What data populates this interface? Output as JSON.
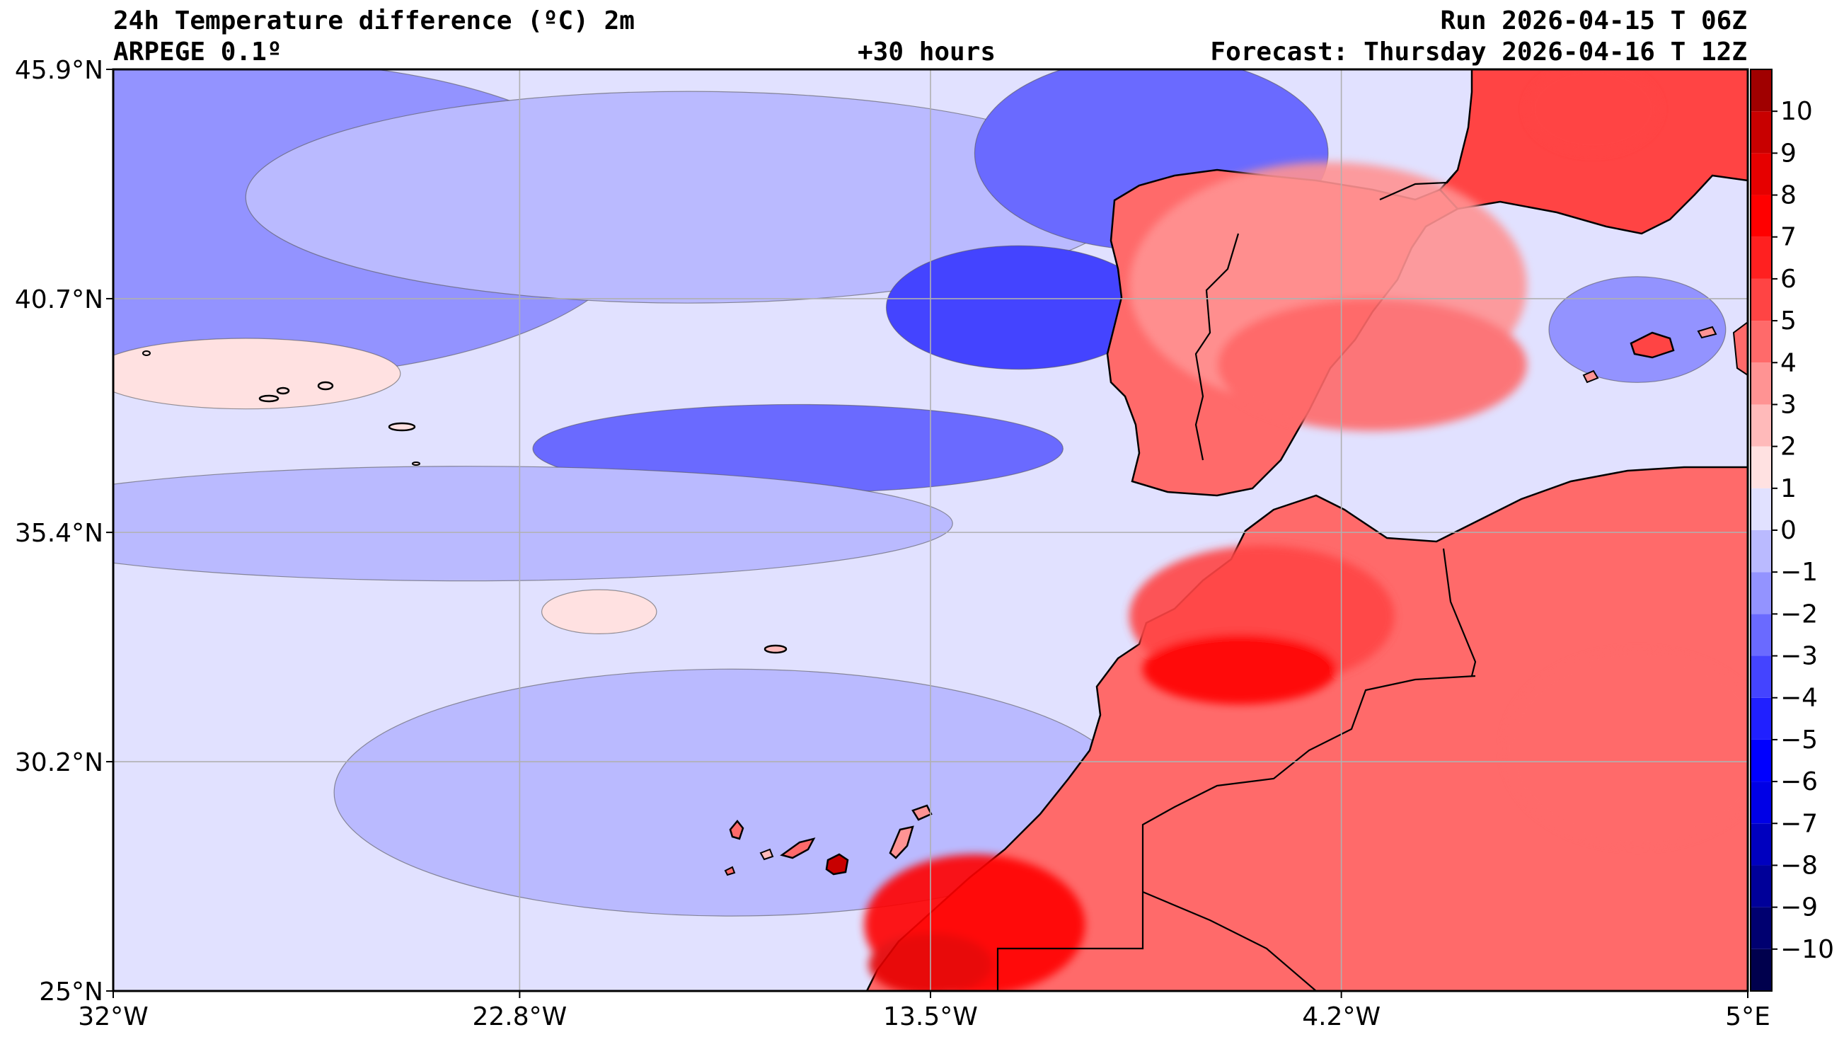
{
  "header": {
    "title_line1": "24h Temperature difference (ºC) 2m",
    "title_line2": "ARPEGE 0.1º",
    "lead_time": "+30 hours",
    "run": "Run 2026-04-15 T 06Z",
    "forecast": "Forecast: Thursday 2026-04-16 T 12Z"
  },
  "map": {
    "extent": {
      "lon_min": -32,
      "lon_max": 5,
      "lat_min": 25,
      "lat_max": 45.9
    },
    "lat_ticks": [
      {
        "value": 45.9,
        "label": "45.9°N"
      },
      {
        "value": 40.7,
        "label": "40.7°N"
      },
      {
        "value": 35.4,
        "label": "35.4°N"
      },
      {
        "value": 30.2,
        "label": "30.2°N"
      },
      {
        "value": 25.0,
        "label": "25°N"
      }
    ],
    "lon_ticks": [
      {
        "value": -32,
        "label": "32°W"
      },
      {
        "value": -22.8,
        "label": "22.8°W"
      },
      {
        "value": -13.5,
        "label": "13.5°W"
      },
      {
        "value": -4.2,
        "label": "4.2°W"
      },
      {
        "value": 5,
        "label": "5°E"
      }
    ],
    "grid": true,
    "grid_color": "#b0b0b0"
  },
  "colorbar": {
    "placement": "right",
    "levels": [
      -11,
      -10,
      -9,
      -8,
      -7,
      -6,
      -5,
      -4,
      -3,
      -2,
      -1,
      0,
      1,
      2,
      3,
      4,
      5,
      6,
      7,
      8,
      9,
      10,
      11
    ],
    "colors": [
      "#00004d",
      "#000070",
      "#000099",
      "#0000bf",
      "#0000e6",
      "#0000ff",
      "#2020ff",
      "#4444ff",
      "#6a6aff",
      "#9393ff",
      "#babaff",
      "#e1e1ff",
      "#ffe1e1",
      "#ffbaba",
      "#ff9393",
      "#ff6a6a",
      "#ff4444",
      "#ff2020",
      "#ff0000",
      "#e60000",
      "#c80000",
      "#a00000"
    ],
    "tick_labels": [
      "−10",
      "−9",
      "−8",
      "−7",
      "−6",
      "−5",
      "−4",
      "−3",
      "−2",
      "−1",
      "0",
      "1",
      "2",
      "3",
      "4",
      "5",
      "6",
      "7",
      "8",
      "9",
      "10"
    ],
    "tick_values": [
      -10,
      -9,
      -8,
      -7,
      -6,
      -5,
      -4,
      -3,
      -2,
      -1,
      0,
      1,
      2,
      3,
      4,
      5,
      6,
      7,
      8,
      9,
      10
    ]
  },
  "fields": {
    "ocean_base_level": 0.5,
    "blobs": [
      {
        "lon": -31,
        "lat": 44.5,
        "rx": 5.5,
        "ry": 2.6,
        "level": -3.5
      },
      {
        "lon": -29,
        "lat": 42.5,
        "rx": 9,
        "ry": 3.6,
        "level": -1.5
      },
      {
        "lon": -19,
        "lat": 43,
        "rx": 10,
        "ry": 2.4,
        "level": -0.5
      },
      {
        "lon": -8.5,
        "lat": 44,
        "rx": 4,
        "ry": 2.2,
        "level": -2.5
      },
      {
        "lon": -11.5,
        "lat": 40.5,
        "rx": 3,
        "ry": 1.4,
        "level": -3.5
      },
      {
        "lon": -16.5,
        "lat": 37.3,
        "rx": 6,
        "ry": 1.0,
        "level": -2.5
      },
      {
        "lon": -24,
        "lat": 35.6,
        "rx": 11,
        "ry": 1.3,
        "level": -0.5
      },
      {
        "lon": -18,
        "lat": 29.5,
        "rx": 9,
        "ry": 2.8,
        "level": -0.5
      },
      {
        "lon": -29,
        "lat": 39,
        "rx": 3.5,
        "ry": 0.8,
        "level": 1.5
      },
      {
        "lon": -21,
        "lat": 33.6,
        "rx": 1.3,
        "ry": 0.5,
        "level": 1.5
      },
      {
        "lon": -4.5,
        "lat": 41,
        "rx": 4.5,
        "ry": 2.8,
        "level": 3.5
      },
      {
        "lon": -3.5,
        "lat": 39.2,
        "rx": 3.5,
        "ry": 1.5,
        "level": 4.5
      },
      {
        "lon": 1.5,
        "lat": 45,
        "rx": 1.5,
        "ry": 1.0,
        "level": 5.5
      },
      {
        "lon": 2.5,
        "lat": 40.0,
        "rx": 2,
        "ry": 1.2,
        "level": -1.5
      },
      {
        "lon": -6,
        "lat": 33.5,
        "rx": 3,
        "ry": 1.6,
        "level": 5.5
      },
      {
        "lon": -6.5,
        "lat": 32.3,
        "rx": 2.2,
        "ry": 0.8,
        "level": 7.5
      },
      {
        "lon": 2.5,
        "lat": 30.5,
        "rx": 3,
        "ry": 2.2,
        "level": 4.5
      },
      {
        "lon": -12.5,
        "lat": 26.5,
        "rx": 2.5,
        "ry": 1.6,
        "level": 7.5
      },
      {
        "lon": -13.5,
        "lat": 25.6,
        "rx": 1.4,
        "ry": 0.7,
        "level": 8.5
      }
    ]
  }
}
